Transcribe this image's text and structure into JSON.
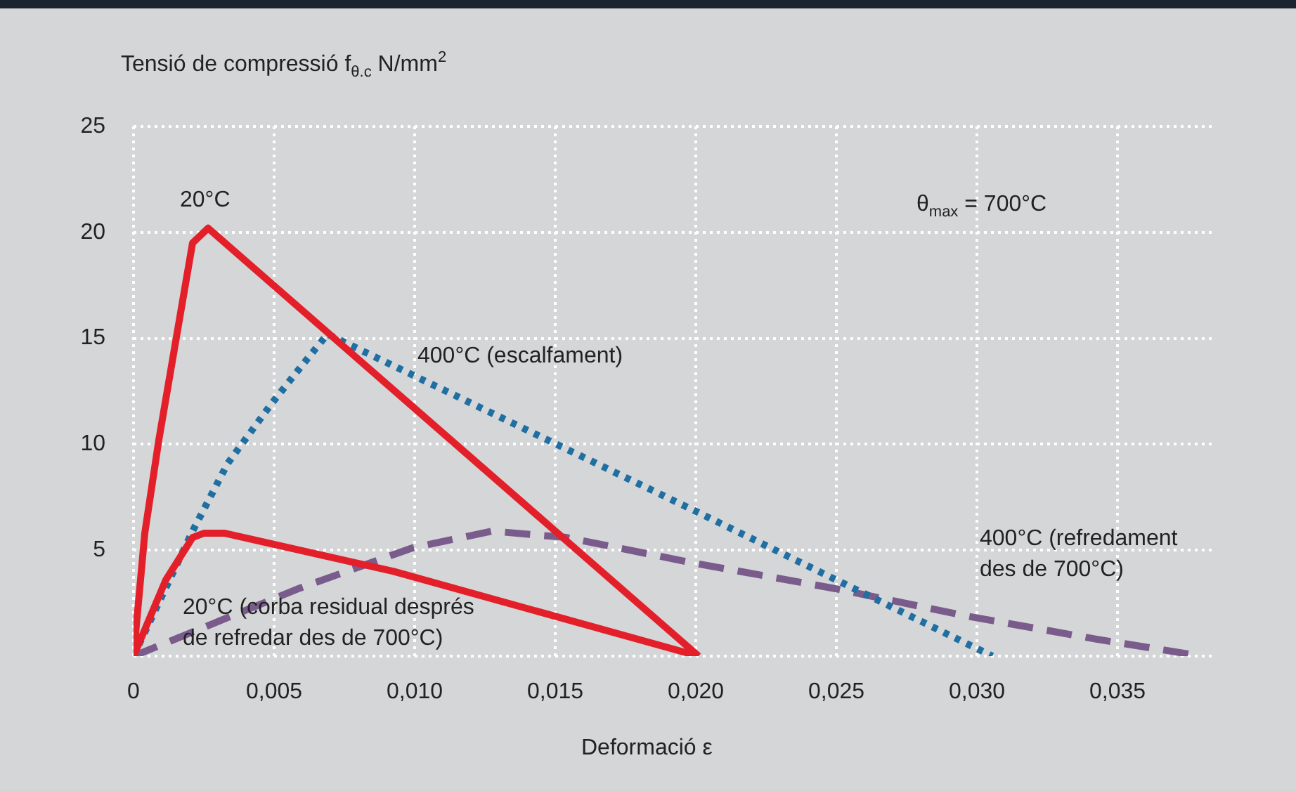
{
  "chart_data": {
    "type": "line",
    "ylabel": "Tensió de compressió f$_{θ.c}$ N/mm$^{2}$",
    "xlabel": "Deformació ε",
    "xlim": [
      0,
      0.0385
    ],
    "ylim": [
      0,
      25
    ],
    "xticks": [
      {
        "value": 0,
        "label": "0"
      },
      {
        "value": 0.005,
        "label": "0,005"
      },
      {
        "value": 0.01,
        "label": "0,010"
      },
      {
        "value": 0.015,
        "label": "0,015"
      },
      {
        "value": 0.02,
        "label": "0,020"
      },
      {
        "value": 0.025,
        "label": "0,025"
      },
      {
        "value": 0.03,
        "label": "0,030"
      },
      {
        "value": 0.035,
        "label": "0,035"
      }
    ],
    "yticks": [
      {
        "value": 0,
        "label": null
      },
      5,
      10,
      15,
      20,
      25
    ],
    "grid": true,
    "legend": false,
    "marker": "none",
    "series": [
      {
        "color": "#e3202a",
        "line_style": "solid",
        "x": [
          0,
          0.0004,
          0.0009,
          0.00175,
          0.0021,
          0.00265,
          0.0201
        ],
        "values": [
          0,
          5.8,
          10.2,
          16.8,
          19.5,
          20.2,
          0
        ]
      },
      {
        "color": "#e3202a",
        "line_style": "solid",
        "x": [
          0,
          0.00115,
          0.0021,
          0.0025,
          0.00325,
          0.00925,
          0.0201
        ],
        "values": [
          0,
          3.6,
          5.6,
          5.8,
          5.8,
          4.0,
          0
        ]
      },
      {
        "color": "#1f6fa3",
        "line_style": "dotted",
        "x": [
          0,
          0.0021,
          0.00335,
          0.0049,
          0.0061,
          0.0069,
          0.0199,
          0.03055
        ],
        "values": [
          0,
          5.9,
          9.1,
          11.9,
          13.9,
          15.2,
          6.9,
          0
        ]
      },
      {
        "color": "#7a5c8c",
        "line_style": "dashed",
        "x": [
          0,
          0.0059,
          0.0099,
          0.01275,
          0.0154,
          0.0199,
          0.0249,
          0.0296,
          0.03425,
          0.038
        ],
        "values": [
          0,
          3.2,
          5.1,
          5.9,
          5.6,
          4.4,
          3.2,
          1.9,
          0.8,
          0
        ]
      }
    ],
    "annotations": [
      "20°C",
      "400°C  (escalfament)",
      "400°C (refredament\ndes de 700°C)",
      "20°C (corba residual després\nde refredar des de 700°C)",
      "θ$_{max}$ = 700°C"
    ]
  }
}
